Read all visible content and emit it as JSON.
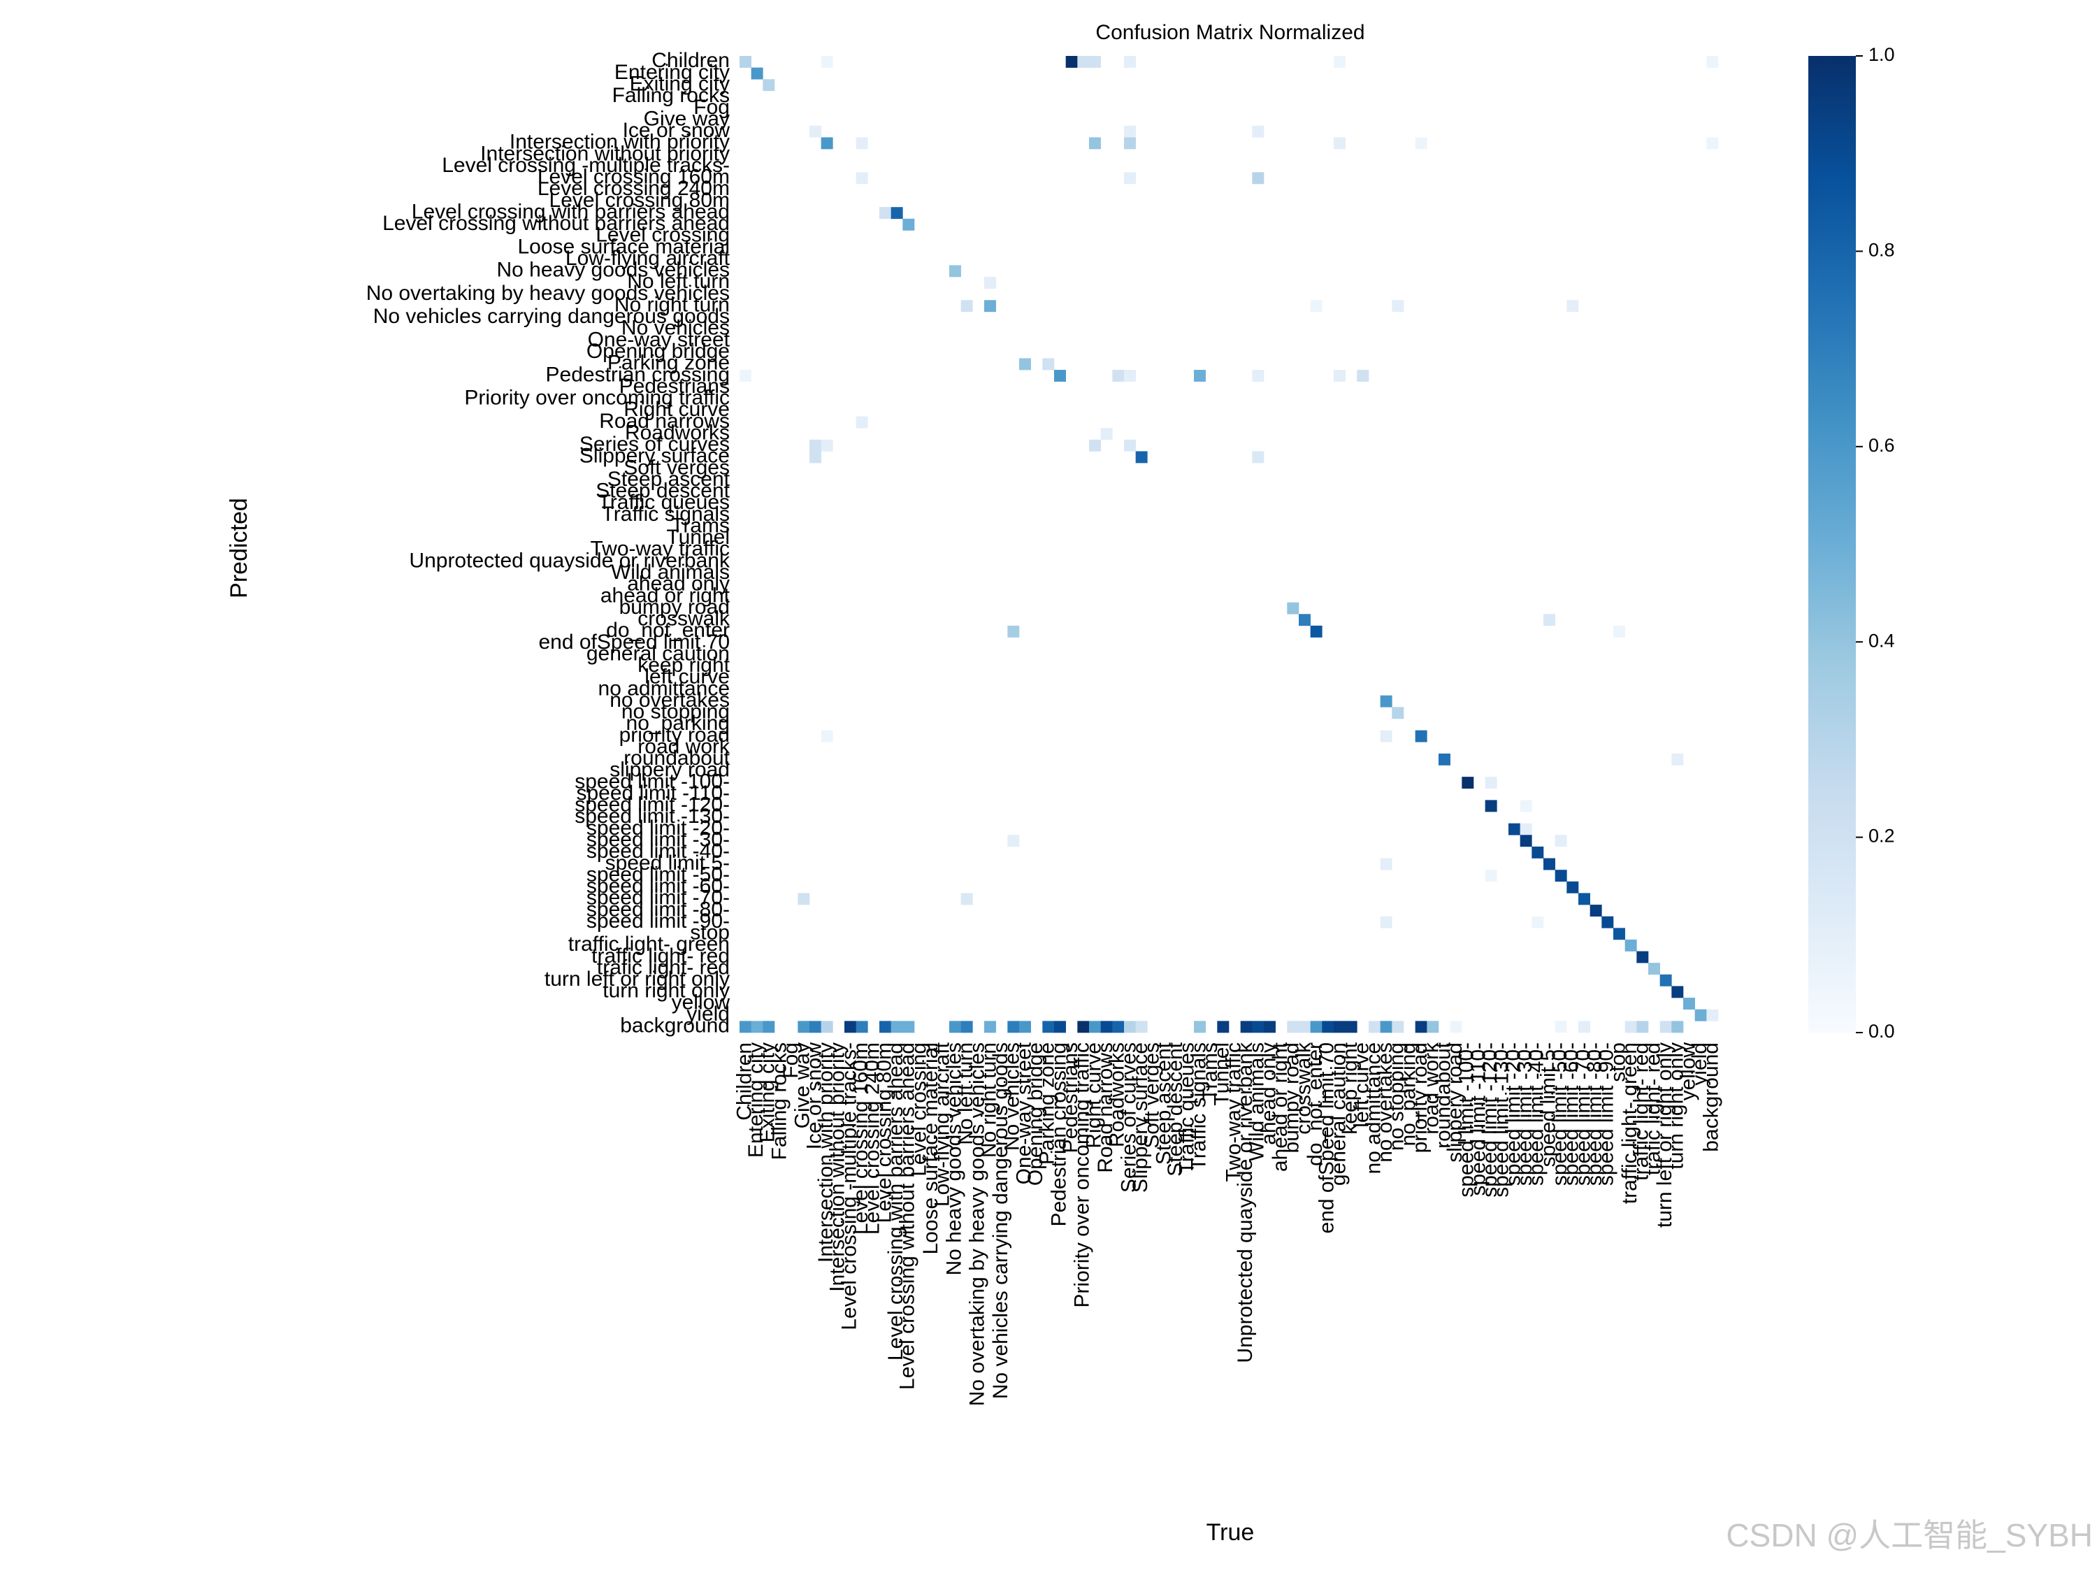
{
  "chart_data": {
    "type": "heatmap",
    "title": "Confusion Matrix Normalized",
    "xlabel": "True",
    "ylabel": "Predicted",
    "watermark": "CSDN @人工智能_SYBH",
    "categories": [
      "Children",
      "Entering city",
      "Exiting city",
      "Falling rocks",
      "Fog",
      "Give way",
      "Ice or snow",
      "Intersection with priority",
      "Intersection without priority",
      "Level crossing -multiple tracks-",
      "Level crossing 160m",
      "Level crossing 240m",
      "Level crossing 80m",
      "Level crossing with barriers ahead",
      "Level crossing without barriers ahead",
      "Level crossing",
      "Loose surface material",
      "Low-flying aircraft",
      "No heavy goods vehicles",
      "No left turn",
      "No overtaking by heavy goods vehicles",
      "No right turn",
      "No vehicles carrying dangerous goods",
      "No vehicles",
      "One-way street",
      "Opening bridge",
      "Parking zone",
      "Pedestrian crossing",
      "Pedestrians",
      "Priority over oncoming traffic",
      "Right curve",
      "Road narrows",
      "Roadworks",
      "Series of curves",
      "Slippery surface",
      "Soft verges",
      "Steep ascent",
      "Steep descent",
      "Traffic queues",
      "Traffic signals",
      "Trams",
      "Tunnel",
      "Two-way traffic",
      "Unprotected quayside or riverbank",
      "Wild animals",
      "ahead only",
      "ahead or right",
      "bumpy road",
      "crosswalk",
      "do_not_enter",
      "end ofSpeed limit 70",
      "general caution",
      "keep right",
      "left curve",
      "no admittance",
      "no overtakes",
      "no stopping",
      "no_parking",
      "priority road",
      "road work",
      "roundabout",
      "slippery road",
      "speed limit -100-",
      "speed limit -110-",
      "speed limit -120-",
      "speed limit -130-",
      "speed limit -20-",
      "speed limit -30-",
      "speed limit -40-",
      "speed limit 5-",
      "speed limit -50-",
      "speed limit -60-",
      "speed limit -70-",
      "speed limit -80-",
      "speed limit -90-",
      "stop",
      "traffic light- green",
      "traffic light- red",
      "trafic light- red",
      "turn left or right only",
      "turn right only",
      "yellow",
      "yield",
      "background"
    ],
    "cells": [
      [
        0,
        0,
        0.3
      ],
      [
        0,
        7,
        0.05
      ],
      [
        0,
        28,
        1.0
      ],
      [
        0,
        29,
        0.2
      ],
      [
        0,
        30,
        0.2
      ],
      [
        0,
        33,
        0.1
      ],
      [
        0,
        51,
        0.05
      ],
      [
        0,
        83,
        0.05
      ],
      [
        1,
        1,
        0.6
      ],
      [
        2,
        2,
        0.3
      ],
      [
        6,
        6,
        0.1
      ],
      [
        6,
        33,
        0.1
      ],
      [
        6,
        44,
        0.1
      ],
      [
        7,
        7,
        0.6
      ],
      [
        7,
        10,
        0.1
      ],
      [
        7,
        30,
        0.4
      ],
      [
        7,
        33,
        0.3
      ],
      [
        7,
        51,
        0.1
      ],
      [
        7,
        58,
        0.05
      ],
      [
        7,
        83,
        0.05
      ],
      [
        10,
        10,
        0.1
      ],
      [
        10,
        33,
        0.1
      ],
      [
        10,
        44,
        0.3
      ],
      [
        13,
        12,
        0.2
      ],
      [
        13,
        13,
        0.8
      ],
      [
        14,
        14,
        0.5
      ],
      [
        18,
        18,
        0.4
      ],
      [
        19,
        21,
        0.1
      ],
      [
        21,
        19,
        0.2
      ],
      [
        21,
        21,
        0.5
      ],
      [
        21,
        49,
        0.05
      ],
      [
        21,
        56,
        0.1
      ],
      [
        21,
        71,
        0.1
      ],
      [
        26,
        24,
        0.4
      ],
      [
        26,
        26,
        0.2
      ],
      [
        27,
        0,
        0.05
      ],
      [
        27,
        27,
        0.6
      ],
      [
        27,
        32,
        0.2
      ],
      [
        27,
        33,
        0.1
      ],
      [
        27,
        39,
        0.5
      ],
      [
        27,
        44,
        0.1
      ],
      [
        27,
        51,
        0.1
      ],
      [
        27,
        53,
        0.2
      ],
      [
        31,
        10,
        0.1
      ],
      [
        32,
        31,
        0.1
      ],
      [
        33,
        6,
        0.2
      ],
      [
        33,
        7,
        0.1
      ],
      [
        33,
        30,
        0.2
      ],
      [
        33,
        33,
        0.15
      ],
      [
        34,
        6,
        0.2
      ],
      [
        34,
        34,
        0.8
      ],
      [
        34,
        44,
        0.15
      ],
      [
        47,
        47,
        0.4
      ],
      [
        48,
        48,
        0.7
      ],
      [
        48,
        69,
        0.15
      ],
      [
        49,
        23,
        0.35
      ],
      [
        49,
        49,
        0.85
      ],
      [
        49,
        75,
        0.05
      ],
      [
        55,
        55,
        0.6
      ],
      [
        56,
        56,
        0.3
      ],
      [
        58,
        7,
        0.05
      ],
      [
        58,
        55,
        0.1
      ],
      [
        58,
        58,
        0.75
      ],
      [
        60,
        60,
        0.75
      ],
      [
        60,
        80,
        0.1
      ],
      [
        62,
        62,
        1.0
      ],
      [
        62,
        64,
        0.1
      ],
      [
        64,
        64,
        0.95
      ],
      [
        64,
        67,
        0.05
      ],
      [
        66,
        66,
        0.9
      ],
      [
        66,
        67,
        0.1
      ],
      [
        67,
        67,
        0.95
      ],
      [
        67,
        23,
        0.1
      ],
      [
        67,
        70,
        0.1
      ],
      [
        68,
        68,
        0.9
      ],
      [
        69,
        69,
        0.9
      ],
      [
        69,
        55,
        0.1
      ],
      [
        70,
        70,
        0.9
      ],
      [
        70,
        64,
        0.05
      ],
      [
        71,
        71,
        0.9
      ],
      [
        72,
        5,
        0.2
      ],
      [
        72,
        19,
        0.15
      ],
      [
        72,
        72,
        0.85
      ],
      [
        73,
        73,
        0.95
      ],
      [
        74,
        74,
        0.9
      ],
      [
        74,
        55,
        0.1
      ],
      [
        74,
        68,
        0.05
      ],
      [
        75,
        75,
        0.85
      ],
      [
        76,
        76,
        0.5
      ],
      [
        77,
        77,
        0.95
      ],
      [
        78,
        78,
        0.4
      ],
      [
        79,
        79,
        0.75
      ],
      [
        80,
        80,
        0.95
      ],
      [
        81,
        81,
        0.5
      ],
      [
        82,
        82,
        0.5
      ],
      [
        82,
        83,
        0.1
      ],
      [
        83,
        0,
        0.6
      ],
      [
        83,
        1,
        0.5
      ],
      [
        83,
        2,
        0.6
      ],
      [
        83,
        5,
        0.6
      ],
      [
        83,
        6,
        0.7
      ],
      [
        83,
        7,
        0.3
      ],
      [
        83,
        9,
        0.95
      ],
      [
        83,
        10,
        0.7
      ],
      [
        83,
        12,
        0.8
      ],
      [
        83,
        13,
        0.5
      ],
      [
        83,
        14,
        0.5
      ],
      [
        83,
        18,
        0.6
      ],
      [
        83,
        19,
        0.7
      ],
      [
        83,
        21,
        0.5
      ],
      [
        83,
        23,
        0.7
      ],
      [
        83,
        24,
        0.6
      ],
      [
        83,
        26,
        0.8
      ],
      [
        83,
        27,
        0.9
      ],
      [
        83,
        29,
        1.0
      ],
      [
        83,
        30,
        0.6
      ],
      [
        83,
        31,
        0.9
      ],
      [
        83,
        32,
        0.8
      ],
      [
        83,
        33,
        0.3
      ],
      [
        83,
        34,
        0.2
      ],
      [
        83,
        39,
        0.4
      ],
      [
        83,
        41,
        0.95
      ],
      [
        83,
        43,
        0.95
      ],
      [
        83,
        44,
        0.9
      ],
      [
        83,
        45,
        0.95
      ],
      [
        83,
        47,
        0.2
      ],
      [
        83,
        48,
        0.2
      ],
      [
        83,
        49,
        0.6
      ],
      [
        83,
        50,
        0.9
      ],
      [
        83,
        51,
        0.95
      ],
      [
        83,
        52,
        0.95
      ],
      [
        83,
        54,
        0.2
      ],
      [
        83,
        55,
        0.6
      ],
      [
        83,
        56,
        0.2
      ],
      [
        83,
        58,
        0.95
      ],
      [
        83,
        59,
        0.4
      ],
      [
        83,
        61,
        0.05
      ],
      [
        83,
        70,
        0.05
      ],
      [
        83,
        72,
        0.1
      ],
      [
        83,
        76,
        0.15
      ],
      [
        83,
        77,
        0.3
      ],
      [
        83,
        79,
        0.2
      ],
      [
        83,
        80,
        0.4
      ]
    ],
    "colormap": [
      "#f7fbff",
      "#deebf7",
      "#c6dbef",
      "#9ecae1",
      "#6baed6",
      "#4292c6",
      "#2171b5",
      "#08519c",
      "#08306b"
    ],
    "clim": [
      0,
      1
    ],
    "cticks": [
      {
        "value": 0,
        "label": "0.0"
      },
      0.2,
      0.4,
      0.6,
      0.8,
      {
        "value": 1,
        "label": "1.0"
      }
    ]
  }
}
